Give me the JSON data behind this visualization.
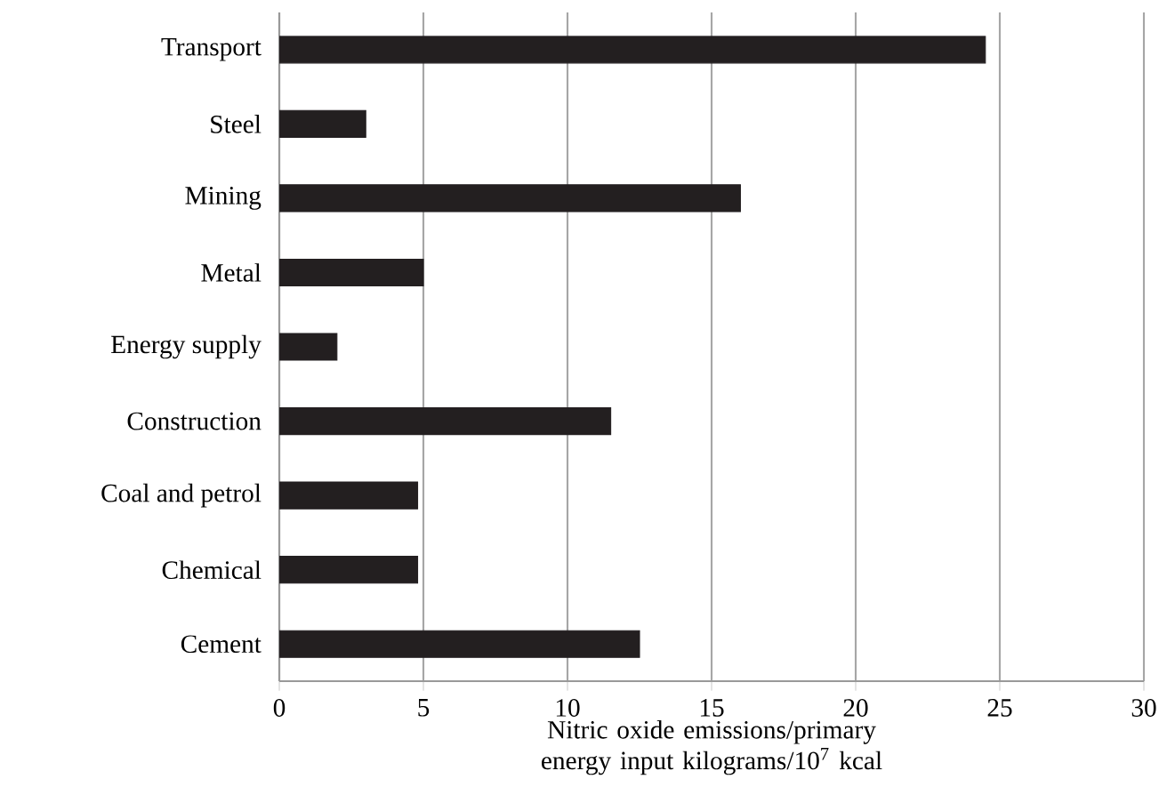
{
  "chart_data": {
    "type": "bar",
    "orientation": "horizontal",
    "categories": [
      "Transport",
      "Steel",
      "Mining",
      "Metal",
      "Energy supply",
      "Construction",
      "Coal and petrol",
      "Chemical",
      "Cement"
    ],
    "values": [
      24.5,
      3.0,
      16.0,
      5.0,
      2.0,
      11.5,
      4.8,
      4.8,
      12.5
    ],
    "color": "#231f20",
    "xlabel": "Nitric oxide emissions/primary energy input kilograms/10$^{7}$ kcal",
    "xlim": [
      0,
      30
    ],
    "xticks": [
      0,
      5,
      10,
      15,
      20,
      25,
      30
    ],
    "grid": "x"
  }
}
